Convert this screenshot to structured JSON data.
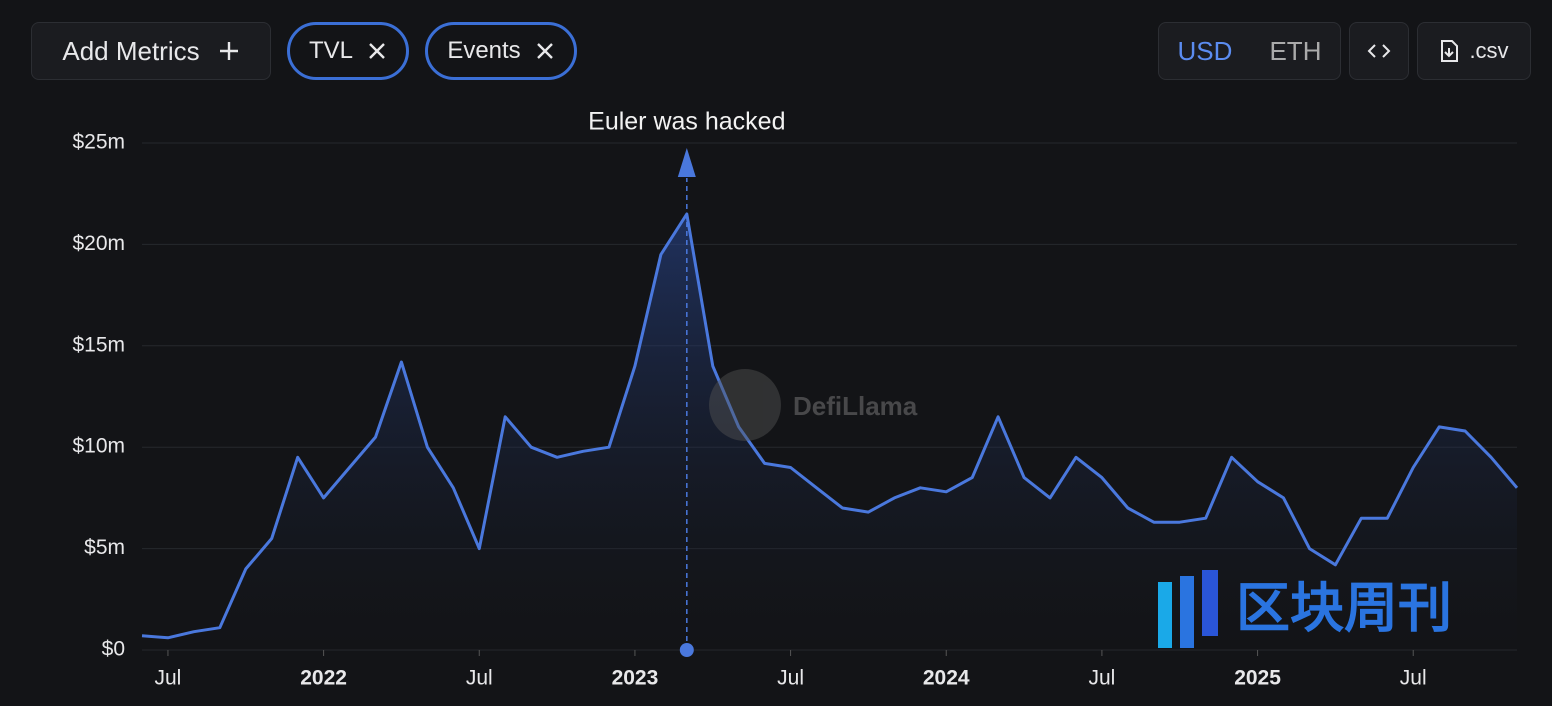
{
  "toolbar": {
    "add_metrics": "Add Metrics",
    "chips": [
      "TVL",
      "Events"
    ],
    "currency": [
      "USD",
      "ETH"
    ],
    "csv": ".csv"
  },
  "watermarks": [
    "DefiLlama",
    "区块周刊"
  ],
  "chart_data": {
    "type": "line",
    "x": [
      "2021-06",
      "2021-07",
      "2021-08",
      "2021-09",
      "2021-10",
      "2021-11",
      "2021-12",
      "2022-01",
      "2022-02",
      "2022-03",
      "2022-04",
      "2022-05",
      "2022-06",
      "2022-07",
      "2022-08",
      "2022-09",
      "2022-10",
      "2022-11",
      "2022-12",
      "2023-01",
      "2023-02",
      "2023-03",
      "2023-04",
      "2023-05",
      "2023-06",
      "2023-07",
      "2023-08",
      "2023-09",
      "2023-10",
      "2023-11",
      "2023-12",
      "2024-01",
      "2024-02",
      "2024-03",
      "2024-04",
      "2024-05",
      "2024-06",
      "2024-07",
      "2024-08",
      "2024-09",
      "2024-10",
      "2024-11",
      "2024-12",
      "2025-01",
      "2025-02",
      "2025-03",
      "2025-04",
      "2025-05",
      "2025-06",
      "2025-07",
      "2025-08",
      "2025-09",
      "2025-10",
      "2025-11"
    ],
    "series": [
      {
        "name": "TVL",
        "color": "#4a78dd",
        "values": [
          0.7,
          0.6,
          0.9,
          1.1,
          4.0,
          5.5,
          9.5,
          7.5,
          9.0,
          10.5,
          14.2,
          10.0,
          8.0,
          5.0,
          11.5,
          10.0,
          9.5,
          9.8,
          10.0,
          14.0,
          19.5,
          21.5,
          14.0,
          11.0,
          9.2,
          9.0,
          8.0,
          7.0,
          6.8,
          7.5,
          8.0,
          7.8,
          8.5,
          11.5,
          8.5,
          7.5,
          9.5,
          8.5,
          7.0,
          6.3,
          6.3,
          6.5,
          9.5,
          8.3,
          7.5,
          5.0,
          4.2,
          6.5,
          6.5,
          9.0,
          11.0,
          10.8,
          9.5,
          8.0
        ]
      }
    ],
    "xlim": [
      "2021-06",
      "2025-11"
    ],
    "xticks": [
      {
        "value": "2021-07",
        "label": "Jul"
      },
      {
        "value": "2022-01",
        "label": "2022"
      },
      {
        "value": "2022-07",
        "label": "Jul"
      },
      {
        "value": "2023-01",
        "label": "2023"
      },
      {
        "value": "2023-07",
        "label": "Jul"
      },
      {
        "value": "2024-01",
        "label": "2024"
      },
      {
        "value": "2024-07",
        "label": "Jul"
      },
      {
        "value": "2025-01",
        "label": "2025"
      },
      {
        "value": "2025-07",
        "label": "Jul"
      }
    ],
    "ylim": [
      0,
      25
    ],
    "yticks": [
      {
        "value": 0,
        "label": "$0"
      },
      {
        "value": 5,
        "label": "$5m"
      },
      {
        "value": 10,
        "label": "$10m"
      },
      {
        "value": 15,
        "label": "$15m"
      },
      {
        "value": 20,
        "label": "$20m"
      },
      {
        "value": 25,
        "label": "$25m"
      }
    ],
    "grid": true,
    "annotations": [
      {
        "x": "2023-03",
        "label": "Euler was hacked"
      }
    ]
  }
}
